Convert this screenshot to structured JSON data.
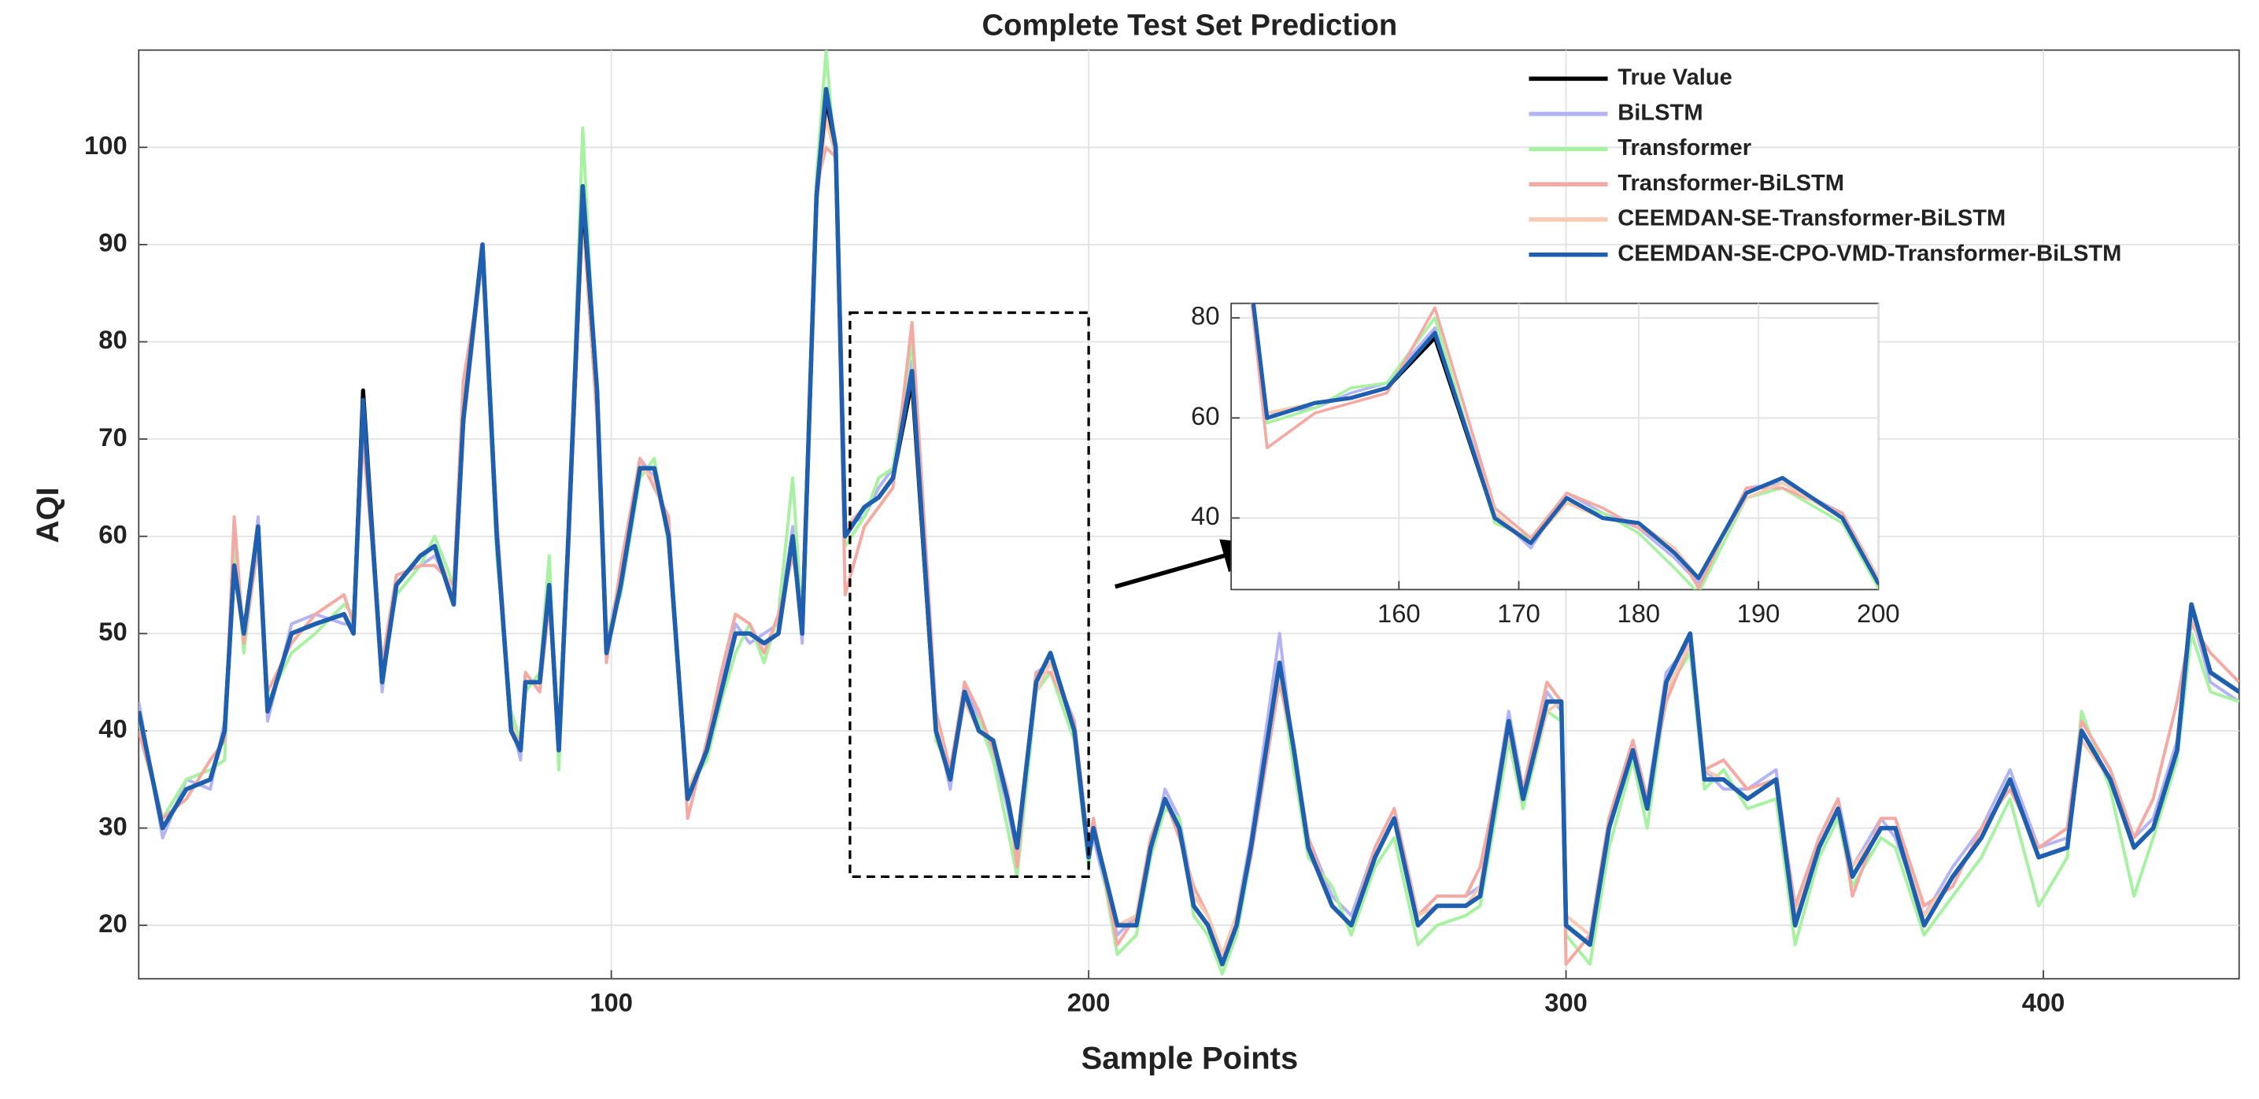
{
  "chart_data": [
    {
      "type": "line",
      "title": "Complete Test Set Prediction",
      "x_label": "Sample Points",
      "y_label": "AQI",
      "x": [
        1,
        6,
        11,
        16,
        19,
        21,
        23,
        26,
        28,
        33,
        38,
        44,
        46,
        48,
        52,
        55,
        60,
        63,
        67,
        69,
        73,
        76,
        79,
        81,
        82,
        85,
        87,
        89,
        91,
        94,
        97,
        99,
        102,
        106,
        109,
        112,
        116,
        120,
        123,
        126,
        129,
        132,
        135,
        138,
        140,
        143,
        145,
        147,
        149,
        153,
        156,
        159,
        163,
        168,
        171,
        174,
        177,
        180,
        183,
        185,
        189,
        192,
        197,
        200,
        201,
        206,
        210,
        213,
        216,
        219,
        222,
        225,
        228,
        231,
        234,
        240,
        243,
        246,
        251,
        255,
        260,
        264,
        269,
        273,
        279,
        282,
        288,
        291,
        296,
        299,
        300,
        305,
        309,
        314,
        317,
        321,
        326,
        329,
        333,
        338,
        344,
        348,
        353,
        357,
        360,
        366,
        369,
        375,
        381,
        387,
        393,
        399,
        405,
        408,
        414,
        419,
        423,
        428,
        431,
        435,
        441
      ],
      "series": [
        {
          "name": "True Value",
          "color": "#000000",
          "values": [
            42,
            30,
            34,
            35,
            40,
            57,
            50,
            61,
            42,
            50,
            51,
            52,
            50,
            75,
            45,
            55,
            58,
            59,
            53,
            72,
            90,
            60,
            40,
            38,
            45,
            45,
            55,
            38,
            60,
            95,
            75,
            48,
            55,
            67,
            67,
            60,
            33,
            38,
            44,
            50,
            50,
            49,
            50,
            60,
            50,
            95,
            105,
            100,
            60,
            63,
            64,
            66,
            76,
            40,
            35,
            44,
            40,
            39,
            33,
            28,
            45,
            48,
            40,
            27,
            30,
            20,
            20,
            28,
            33,
            30,
            22,
            20,
            16,
            20,
            28,
            47,
            38,
            28,
            22,
            20,
            27,
            31,
            20,
            22,
            22,
            23,
            41,
            33,
            43,
            43,
            20,
            18,
            30,
            38,
            32,
            45,
            50,
            35,
            35,
            33,
            35,
            20,
            28,
            32,
            25,
            30,
            30,
            20,
            25,
            29,
            35,
            27,
            28,
            40,
            35,
            28,
            30,
            38,
            53,
            46,
            44
          ]
        },
        {
          "name": "BiLSTM",
          "color": "#b4b4f4",
          "values": [
            43,
            29,
            35,
            34,
            41,
            58,
            49,
            62,
            41,
            51,
            52,
            51,
            51,
            74,
            44,
            56,
            57,
            58,
            54,
            73,
            89,
            59,
            41,
            37,
            46,
            44,
            56,
            39,
            61,
            94,
            74,
            49,
            56,
            68,
            66,
            61,
            34,
            37,
            45,
            51,
            49,
            50,
            51,
            61,
            49,
            96,
            104,
            99,
            61,
            62,
            65,
            67,
            78,
            41,
            34,
            45,
            41,
            38,
            32,
            27,
            46,
            47,
            41,
            28,
            29,
            19,
            21,
            27,
            34,
            31,
            23,
            21,
            17,
            21,
            29,
            50,
            37,
            29,
            23,
            21,
            28,
            32,
            21,
            23,
            23,
            24,
            42,
            34,
            44,
            42,
            21,
            19,
            31,
            39,
            33,
            46,
            49,
            36,
            34,
            34,
            36,
            21,
            29,
            33,
            26,
            31,
            29,
            21,
            26,
            30,
            36,
            28,
            29,
            41,
            36,
            29,
            31,
            39,
            52,
            45,
            43
          ]
        },
        {
          "name": "Transformer",
          "color": "#a6f2a0",
          "values": [
            41,
            31,
            35,
            36,
            37,
            60,
            48,
            60,
            43,
            48,
            50,
            53,
            52,
            72,
            46,
            54,
            57,
            60,
            55,
            74,
            88,
            58,
            42,
            39,
            44,
            46,
            58,
            36,
            59,
            102,
            73,
            50,
            54,
            66,
            68,
            59,
            34,
            37,
            43,
            48,
            51,
            47,
            52,
            66,
            51,
            97,
            110,
            98,
            59,
            62,
            66,
            67,
            80,
            39,
            36,
            43,
            41,
            37,
            30,
            25,
            44,
            46,
            39,
            26,
            31,
            17,
            19,
            27,
            32,
            31,
            21,
            19,
            15,
            19,
            27,
            46,
            36,
            27,
            24,
            19,
            26,
            29,
            18,
            20,
            21,
            22,
            39,
            32,
            42,
            41,
            19,
            16,
            28,
            37,
            30,
            44,
            48,
            34,
            36,
            32,
            33,
            18,
            27,
            31,
            24,
            29,
            28,
            19,
            23,
            27,
            33,
            22,
            27,
            42,
            34,
            23,
            29,
            37,
            50,
            44,
            43
          ]
        },
        {
          "name": "Transformer-BiLSTM",
          "color": "#f4aaa2",
          "values": [
            40,
            31,
            33,
            37,
            39,
            62,
            49,
            59,
            44,
            49,
            52,
            54,
            51,
            70,
            47,
            56,
            57,
            57,
            55,
            76,
            88,
            62,
            40,
            39,
            46,
            44,
            53,
            40,
            58,
            93,
            72,
            47,
            57,
            68,
            65,
            62,
            31,
            39,
            46,
            52,
            51,
            48,
            52,
            58,
            52,
            96,
            100,
            99,
            54,
            61,
            63,
            65,
            82,
            42,
            36,
            45,
            42,
            38,
            34,
            26,
            46,
            46,
            41,
            28,
            31,
            18,
            21,
            29,
            33,
            29,
            24,
            21,
            17,
            21,
            27,
            45,
            38,
            29,
            22,
            20,
            28,
            32,
            21,
            23,
            23,
            26,
            40,
            34,
            45,
            43,
            16,
            19,
            31,
            39,
            33,
            43,
            49,
            36,
            37,
            34,
            35,
            22,
            29,
            33,
            23,
            31,
            31,
            22,
            24,
            30,
            34,
            28,
            30,
            41,
            36,
            29,
            33,
            43,
            51,
            48,
            45
          ]
        },
        {
          "name": "CEEMDAN-SE-Transformer-BiLSTM",
          "color": "#f8cab2",
          "values": [
            42,
            30,
            34,
            35,
            40,
            56,
            50,
            60,
            42,
            50,
            51,
            52,
            50,
            73,
            45,
            55,
            58,
            59,
            54,
            71,
            89,
            60,
            41,
            38,
            45,
            45,
            54,
            39,
            60,
            93,
            74,
            49,
            55,
            67,
            66,
            60,
            34,
            38,
            44,
            50,
            50,
            49,
            50,
            59,
            51,
            94,
            103,
            99,
            61,
            63,
            64,
            66,
            77,
            41,
            35,
            43,
            40,
            39,
            34,
            28,
            44,
            47,
            40,
            28,
            30,
            20,
            21,
            28,
            33,
            30,
            23,
            21,
            17,
            21,
            28,
            46,
            38,
            28,
            22,
            20,
            27,
            31,
            21,
            22,
            22,
            24,
            40,
            33,
            42,
            43,
            21,
            19,
            30,
            38,
            32,
            44,
            49,
            36,
            35,
            33,
            35,
            21,
            28,
            32,
            26,
            30,
            30,
            21,
            25,
            29,
            35,
            27,
            28,
            39,
            35,
            28,
            30,
            38,
            52,
            46,
            44
          ]
        },
        {
          "name": "CEEMDAN-SE-CPO-VMD-Transformer-BiLSTM",
          "color": "#1f5fb0",
          "values": [
            42,
            30,
            34,
            35,
            40,
            57,
            50,
            61,
            42,
            50,
            51,
            52,
            50,
            74,
            45,
            55,
            58,
            59,
            53,
            72,
            90,
            60,
            40,
            38,
            45,
            45,
            55,
            38,
            60,
            96,
            75,
            48,
            55,
            67,
            67,
            60,
            33,
            38,
            44,
            50,
            50,
            49,
            50,
            60,
            50,
            95,
            106,
            100,
            60,
            63,
            64,
            66,
            77,
            40,
            35,
            44,
            40,
            39,
            33,
            28,
            45,
            48,
            40,
            27,
            30,
            20,
            20,
            28,
            33,
            30,
            22,
            20,
            16,
            20,
            28,
            47,
            38,
            28,
            22,
            20,
            27,
            31,
            20,
            22,
            22,
            23,
            41,
            33,
            43,
            43,
            20,
            18,
            30,
            38,
            32,
            45,
            50,
            35,
            35,
            33,
            35,
            20,
            28,
            32,
            25,
            30,
            30,
            20,
            25,
            29,
            35,
            27,
            28,
            40,
            35,
            28,
            30,
            38,
            53,
            46,
            44
          ]
        }
      ],
      "xlim": [
        1,
        441
      ],
      "xticks": [
        100,
        200,
        300,
        400
      ],
      "ylim": [
        14.5,
        110
      ],
      "yticks": [
        20,
        30,
        40,
        50,
        60,
        70,
        80,
        90,
        100
      ],
      "grid": true,
      "legend": "northeast"
    },
    {
      "type": "inset",
      "xlim": [
        146,
        200
      ],
      "xticks": [
        160,
        170,
        180,
        190,
        200
      ],
      "ylim": [
        25.7,
        82.9
      ],
      "yticks": [
        40,
        60,
        80
      ],
      "grid": true,
      "zoom_box": {
        "xlim": [
          150,
          200
        ],
        "ylim": [
          25,
          83
        ]
      }
    }
  ]
}
